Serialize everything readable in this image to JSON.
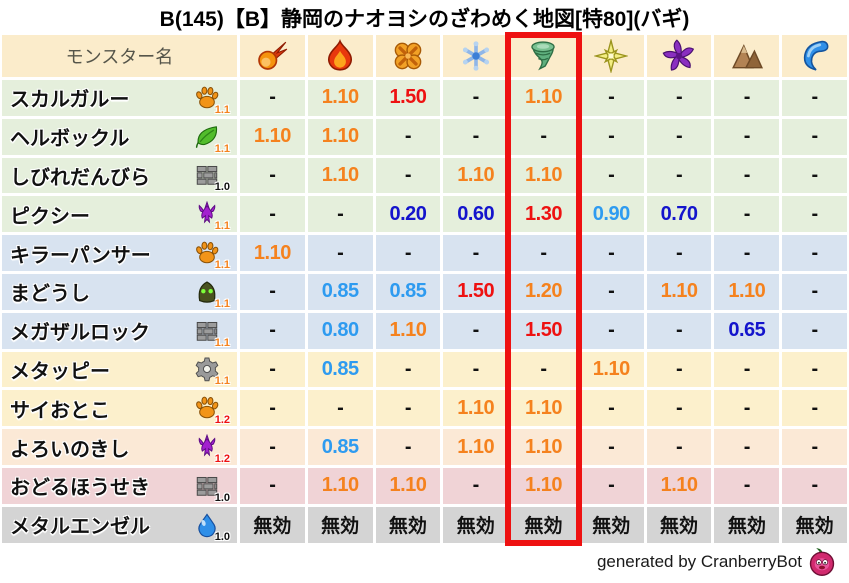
{
  "title": "B(145)【B】静岡のナオヨシのざわめく地図[特80](バギ)",
  "caption": "generated by CranberryBot",
  "colors": {
    "highlight_box": "#ee1111",
    "value_strong_weakness": "#ee1111",
    "value_weakness": "#f5821e",
    "value_resist": "#2e9bf0",
    "value_strong_resist": "#1414cc",
    "value_neutral": "#111111",
    "multiplier_1_0": "#111111",
    "multiplier_1_1": "#f5821e",
    "multiplier_1_2": "#ee1111",
    "header_bg": "#fbeccb",
    "rows": {
      "green": "#e5efdc",
      "blue": "#d8e3f0",
      "cream": "#fcf0cc",
      "peach": "#fbe9d6",
      "pink": "#f0d3d6",
      "gray": "#d4d4d4"
    }
  },
  "table": {
    "name_header": "モンスター名",
    "columns": [
      {
        "icon": "fireball"
      },
      {
        "icon": "flame"
      },
      {
        "icon": "burst"
      },
      {
        "icon": "snowflake"
      },
      {
        "icon": "tornado"
      },
      {
        "icon": "sparkle"
      },
      {
        "icon": "pinwheel"
      },
      {
        "icon": "mountain"
      },
      {
        "icon": "wave"
      }
    ],
    "highlighted_column_index": 4,
    "rows": [
      {
        "name": "スカルガルー",
        "family": "paw",
        "family_multiplier": "1.1",
        "bg": "green",
        "values": [
          "-",
          "1.10",
          "1.50",
          "-",
          "1.10",
          "-",
          "-",
          "-",
          "-"
        ]
      },
      {
        "name": "ヘルボックル",
        "family": "leaf",
        "family_multiplier": "1.1",
        "bg": "green",
        "values": [
          "1.10",
          "1.10",
          "-",
          "-",
          "-",
          "-",
          "-",
          "-",
          "-"
        ]
      },
      {
        "name": "しびれだんびら",
        "family": "brick",
        "family_multiplier": "1.0",
        "bg": "green",
        "values": [
          "-",
          "1.10",
          "-",
          "1.10",
          "1.10",
          "-",
          "-",
          "-",
          "-"
        ]
      },
      {
        "name": "ピクシー",
        "family": "trident",
        "family_multiplier": "1.1",
        "bg": "green",
        "values": [
          "-",
          "-",
          "0.20",
          "0.60",
          "1.30",
          "0.90",
          "0.70",
          "-",
          "-"
        ]
      },
      {
        "name": "キラーパンサー",
        "family": "paw",
        "family_multiplier": "1.1",
        "bg": "blue",
        "values": [
          "1.10",
          "-",
          "-",
          "-",
          "-",
          "-",
          "-",
          "-",
          "-"
        ]
      },
      {
        "name": "まどうし",
        "family": "hood",
        "family_multiplier": "1.1",
        "bg": "blue",
        "values": [
          "-",
          "0.85",
          "0.85",
          "1.50",
          "1.20",
          "-",
          "1.10",
          "1.10",
          "-"
        ]
      },
      {
        "name": "メガザルロック",
        "family": "brick",
        "family_multiplier": "1.1",
        "bg": "blue",
        "values": [
          "-",
          "0.80",
          "1.10",
          "-",
          "1.50",
          "-",
          "-",
          "0.65",
          "-"
        ]
      },
      {
        "name": "メタッピー",
        "family": "gear",
        "family_multiplier": "1.1",
        "bg": "cream",
        "values": [
          "-",
          "0.85",
          "-",
          "-",
          "-",
          "1.10",
          "-",
          "-",
          "-"
        ]
      },
      {
        "name": "サイおとこ",
        "family": "paw",
        "family_multiplier": "1.2",
        "bg": "cream",
        "values": [
          "-",
          "-",
          "-",
          "1.10",
          "1.10",
          "-",
          "-",
          "-",
          "-"
        ]
      },
      {
        "name": "よろいのきし",
        "family": "trident",
        "family_multiplier": "1.2",
        "bg": "peach",
        "values": [
          "-",
          "0.85",
          "-",
          "1.10",
          "1.10",
          "-",
          "-",
          "-",
          "-"
        ]
      },
      {
        "name": "おどるほうせき",
        "family": "brick",
        "family_multiplier": "1.0",
        "bg": "pink",
        "values": [
          "-",
          "1.10",
          "1.10",
          "-",
          "1.10",
          "-",
          "1.10",
          "-",
          "-"
        ]
      },
      {
        "name": "メタルエンゼル",
        "family": "slime",
        "family_multiplier": "1.0",
        "bg": "gray",
        "values": [
          "無効",
          "無効",
          "無効",
          "無効",
          "無効",
          "無効",
          "無効",
          "無効",
          "無効"
        ]
      }
    ]
  }
}
